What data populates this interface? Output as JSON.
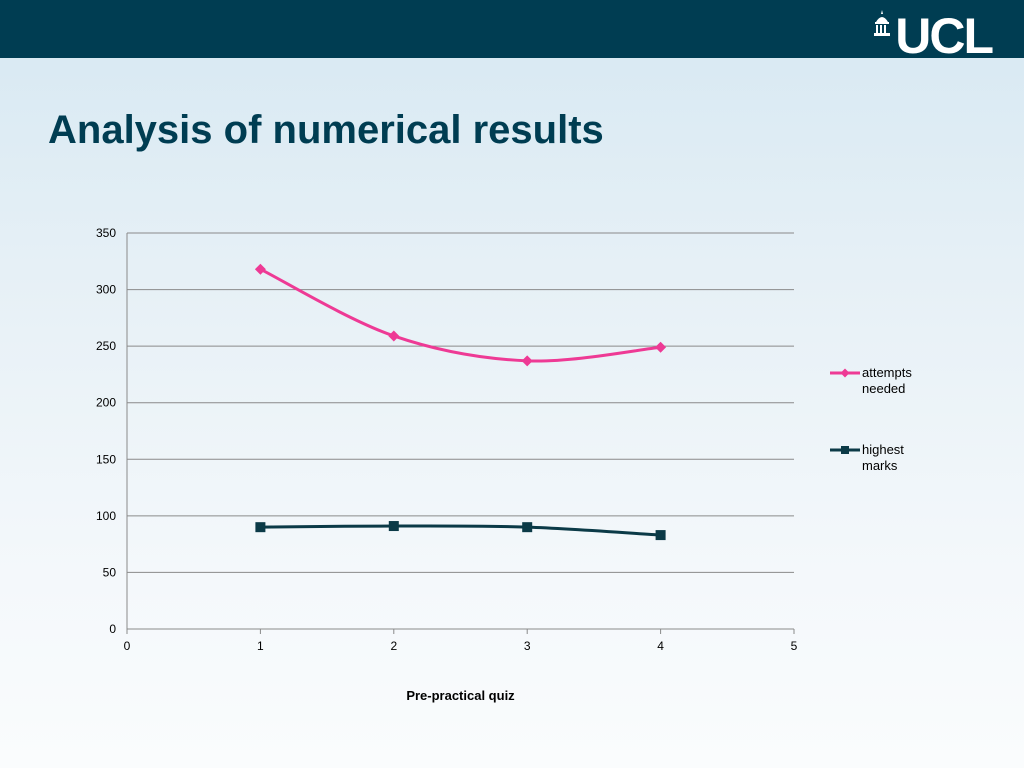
{
  "slide": {
    "title": "Analysis of numerical results"
  },
  "logo": {
    "text": "UCL"
  },
  "colors": {
    "header": "#003d52",
    "title": "#003d52",
    "series_attempts": "#ee3a95",
    "series_marks": "#0b3a47"
  },
  "chart_data": {
    "type": "line",
    "title": "",
    "xlabel": "Pre-practical quiz",
    "ylabel": "",
    "xlim": [
      0,
      5
    ],
    "ylim": [
      0,
      350
    ],
    "xticks": [
      0,
      1,
      2,
      3,
      4,
      5
    ],
    "yticks": [
      0,
      50,
      100,
      150,
      200,
      250,
      300,
      350
    ],
    "grid": true,
    "legend_position": "right",
    "series": [
      {
        "name": "attempts needed",
        "color": "#ee3a95",
        "marker": "diamond",
        "x": [
          1,
          2,
          3,
          4
        ],
        "y": [
          318,
          259,
          237,
          249
        ]
      },
      {
        "name": "highest marks",
        "color": "#0b3a47",
        "marker": "square",
        "x": [
          1,
          2,
          3,
          4
        ],
        "y": [
          90,
          91,
          90,
          83
        ]
      }
    ]
  }
}
